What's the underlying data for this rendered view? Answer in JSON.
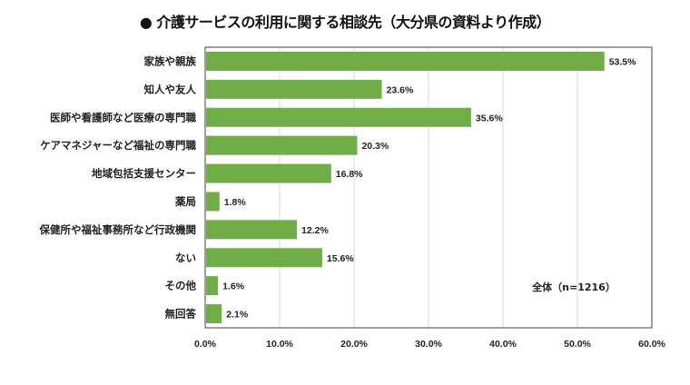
{
  "chart_data": {
    "type": "bar",
    "orientation": "horizontal",
    "title": "● 介護サービスの利用に関する相談先（大分県の資料より作成）",
    "categories": [
      "家族や親族",
      "知人や友人",
      "医師や看護師など医療の専門職",
      "ケアマネジャーなど福祉の専門職",
      "地域包括支援センター",
      "薬局",
      "保健所や福祉事務所など行政機関",
      "ない",
      "その他",
      "無回答"
    ],
    "values": [
      53.5,
      23.6,
      35.6,
      20.3,
      16.8,
      1.8,
      12.2,
      15.6,
      1.6,
      2.1
    ],
    "data_labels": [
      "53.5%",
      "23.6%",
      "35.6%",
      "20.3%",
      "16.8%",
      "1.8%",
      "12.2%",
      "15.6%",
      "1.6%",
      "2.1%"
    ],
    "xlim": [
      0,
      60
    ],
    "xticks": [
      "0.0%",
      "10.0%",
      "20.0%",
      "30.0%",
      "40.0%",
      "50.0%",
      "60.0%"
    ],
    "annotation": "全体（n=1216）",
    "grid": "vertical",
    "bar_color": "#70ad47"
  }
}
